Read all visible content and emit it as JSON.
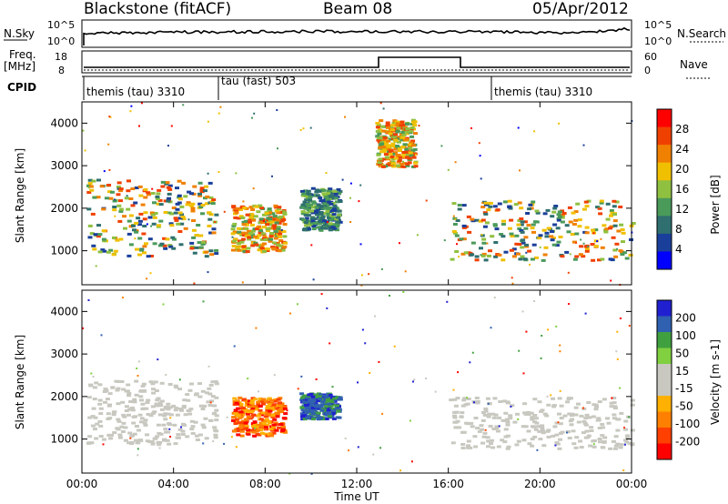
{
  "header": {
    "title": "Blackstone (fitACF)",
    "beam": "Beam 08",
    "date": "05/Apr/2012"
  },
  "top_panels": {
    "nsky_label": "N.Sky",
    "nsky_ticks": [
      "10^5",
      "10^0"
    ],
    "nsearch_label": "N.Search",
    "nsearch_ticks": [
      "10^5",
      "10^0"
    ],
    "freq_label": "Freq.",
    "freq_unit": "[MHz]",
    "freq_ticks": [
      "18",
      "8"
    ],
    "nave_label": "Nave",
    "nave_ticks": [
      "60",
      "0"
    ],
    "cpid_label": "CPID",
    "cpid_segments": [
      {
        "label": "themis (tau) 3310",
        "start_hour": 0
      },
      {
        "label": "tau (fast) 503",
        "start_hour": 6
      },
      {
        "label": "themis (tau) 3310",
        "start_hour": 18
      }
    ]
  },
  "colors": {
    "power": [
      "#0000ff",
      "#1a3f9a",
      "#2f6f6f",
      "#4a9a5a",
      "#8fc040",
      "#f0c000",
      "#f08000",
      "#f04000",
      "#ff0000"
    ],
    "velocity": [
      "#ff0000",
      "#ff4000",
      "#ff8000",
      "#ffb000",
      "#c8c8c0",
      "#c8c8c0",
      "#80d040",
      "#40a040",
      "#3060b0",
      "#2020d0"
    ]
  },
  "chart_data": [
    {
      "type": "heatmap",
      "panel": "power",
      "xlabel": "",
      "ylabel": "Slant Range [km]",
      "x_range_hours": [
        0,
        24
      ],
      "ylim": [
        200,
        4500
      ],
      "y_ticks": [
        1000,
        2000,
        3000,
        4000
      ],
      "colorbar_label": "Power [dB]",
      "colorbar_ticks": [
        "28",
        "24",
        "20",
        "16",
        "12",
        "8",
        "4"
      ],
      "features": [
        {
          "name": "band-morning",
          "hour_range": [
            0.2,
            5.8
          ],
          "range_km": [
            900,
            2700
          ],
          "power_db": [
            4,
            28
          ]
        },
        {
          "name": "echo-0700",
          "hour_range": [
            6.5,
            8.8
          ],
          "range_km": [
            1000,
            2100
          ],
          "power_db": [
            12,
            28
          ]
        },
        {
          "name": "echo-1100",
          "hour_range": [
            9.5,
            11.2
          ],
          "range_km": [
            1500,
            2500
          ],
          "power_db": [
            4,
            16
          ]
        },
        {
          "name": "echo-1400",
          "hour_range": [
            12.8,
            14.5
          ],
          "range_km": [
            3000,
            4100
          ],
          "power_db": [
            12,
            28
          ]
        },
        {
          "name": "band-evening",
          "hour_range": [
            16,
            24
          ],
          "range_km": [
            800,
            2200
          ],
          "power_db": [
            4,
            28
          ]
        }
      ]
    },
    {
      "type": "heatmap",
      "panel": "velocity",
      "xlabel": "Time UT",
      "ylabel": "Slant Range [km]",
      "x_range_hours": [
        0,
        24
      ],
      "x_ticks": [
        "00:00",
        "04:00",
        "08:00",
        "12:00",
        "16:00",
        "20:00",
        "00:00"
      ],
      "ylim": [
        200,
        4500
      ],
      "y_ticks": [
        1000,
        2000,
        3000,
        4000
      ],
      "colorbar_label": "Velocity [m s-1]",
      "colorbar_ticks": [
        "200",
        "100",
        "50",
        "15",
        "-15",
        "-50",
        "-100",
        "-200"
      ],
      "features": [
        {
          "name": "ground-scatter-morning",
          "hour_range": [
            0.2,
            5.8
          ],
          "range_km": [
            900,
            2400
          ],
          "velocity_ms": [
            -15,
            15
          ]
        },
        {
          "name": "flow-0730",
          "hour_range": [
            6.5,
            8.8
          ],
          "range_km": [
            1100,
            2000
          ],
          "velocity_ms": [
            -200,
            -50
          ]
        },
        {
          "name": "flow-1100",
          "hour_range": [
            9.5,
            11.2
          ],
          "range_km": [
            1500,
            2100
          ],
          "velocity_ms": [
            100,
            200
          ]
        },
        {
          "name": "ground-scatter-evening",
          "hour_range": [
            16,
            24
          ],
          "range_km": [
            800,
            2000
          ],
          "velocity_ms": [
            -15,
            15
          ]
        }
      ]
    }
  ]
}
